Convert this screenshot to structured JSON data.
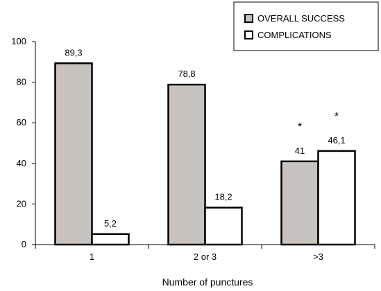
{
  "chart_data": {
    "type": "bar",
    "categories": [
      "1",
      "2 or 3",
      ">3"
    ],
    "series": [
      {
        "name": "OVERALL SUCCESS",
        "values": [
          89.3,
          78.8,
          41
        ],
        "labels": [
          "89,3",
          "78,8",
          "41"
        ],
        "color": "#c8c3be",
        "annotations": [
          "",
          "",
          "*"
        ]
      },
      {
        "name": "COMPLICATIONS",
        "values": [
          5.2,
          18.2,
          46.1
        ],
        "labels": [
          "5,2",
          "18,2",
          "46,1"
        ],
        "color": "#ffffff",
        "annotations": [
          "",
          "",
          "*"
        ]
      }
    ],
    "xlabel": "Number of punctures",
    "ylabel": "",
    "ylim": [
      0,
      100
    ],
    "yticks": [
      0,
      20,
      40,
      60,
      80,
      100
    ],
    "grid": false,
    "legend_position": "top-right"
  }
}
